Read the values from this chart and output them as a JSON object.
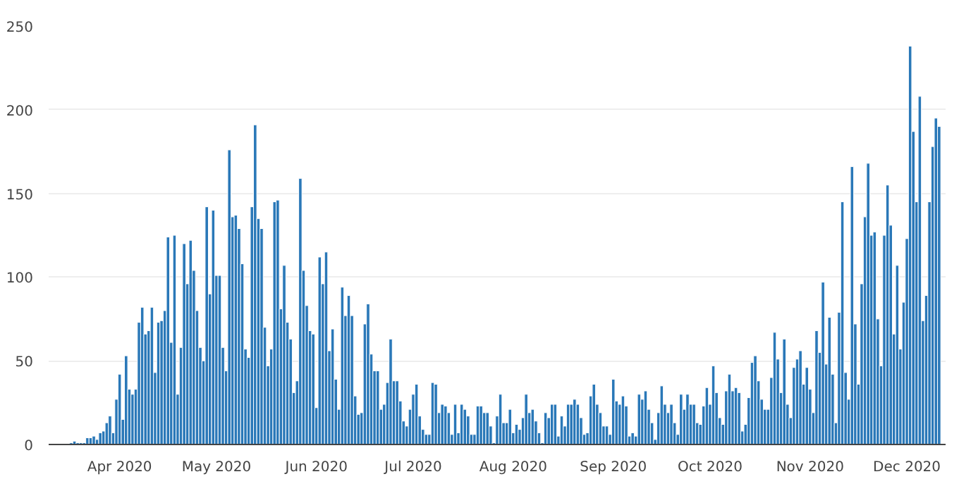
{
  "chart_data": {
    "type": "bar",
    "color": "#2a78b8",
    "grid": "y",
    "xlim": [
      "2020-03-10",
      "2020-12-13"
    ],
    "xticks": [
      {
        "value": "2020-04-01",
        "label": "Apr 2020"
      },
      {
        "value": "2020-05-01",
        "label": "May 2020"
      },
      {
        "value": "2020-06-01",
        "label": "Jun 2020"
      },
      {
        "value": "2020-07-01",
        "label": "Jul 2020"
      },
      {
        "value": "2020-08-01",
        "label": "Aug 2020"
      },
      {
        "value": "2020-09-01",
        "label": "Sep 2020"
      },
      {
        "value": "2020-10-01",
        "label": "Oct 2020"
      },
      {
        "value": "2020-11-01",
        "label": "Nov 2020"
      },
      {
        "value": "2020-12-01",
        "label": "Dec 2020"
      }
    ],
    "ylim": [
      0,
      250
    ],
    "yticks": [
      0,
      50,
      100,
      150,
      200,
      250
    ],
    "x": [
      "2020-03-17",
      "2020-03-18",
      "2020-03-19",
      "2020-03-20",
      "2020-03-21",
      "2020-03-22",
      "2020-03-23",
      "2020-03-24",
      "2020-03-25",
      "2020-03-26",
      "2020-03-27",
      "2020-03-28",
      "2020-03-29",
      "2020-03-30",
      "2020-03-31",
      "2020-04-01",
      "2020-04-02",
      "2020-04-03",
      "2020-04-04",
      "2020-04-05",
      "2020-04-06",
      "2020-04-07",
      "2020-04-08",
      "2020-04-09",
      "2020-04-10",
      "2020-04-11",
      "2020-04-12",
      "2020-04-13",
      "2020-04-14",
      "2020-04-15",
      "2020-04-16",
      "2020-04-17",
      "2020-04-18",
      "2020-04-19",
      "2020-04-20",
      "2020-04-21",
      "2020-04-22",
      "2020-04-23",
      "2020-04-24",
      "2020-04-25",
      "2020-04-26",
      "2020-04-27",
      "2020-04-28",
      "2020-04-29",
      "2020-04-30",
      "2020-05-01",
      "2020-05-02",
      "2020-05-03",
      "2020-05-04",
      "2020-05-05",
      "2020-05-06",
      "2020-05-07",
      "2020-05-08",
      "2020-05-09",
      "2020-05-10",
      "2020-05-11",
      "2020-05-12",
      "2020-05-13",
      "2020-05-14",
      "2020-05-15",
      "2020-05-16",
      "2020-05-17",
      "2020-05-18",
      "2020-05-19",
      "2020-05-20",
      "2020-05-21",
      "2020-05-22",
      "2020-05-23",
      "2020-05-24",
      "2020-05-25",
      "2020-05-26",
      "2020-05-27",
      "2020-05-28",
      "2020-05-29",
      "2020-05-30",
      "2020-05-31",
      "2020-06-01",
      "2020-06-02",
      "2020-06-03",
      "2020-06-04",
      "2020-06-05",
      "2020-06-06",
      "2020-06-07",
      "2020-06-08",
      "2020-06-09",
      "2020-06-10",
      "2020-06-11",
      "2020-06-12",
      "2020-06-13",
      "2020-06-14",
      "2020-06-15",
      "2020-06-16",
      "2020-06-17",
      "2020-06-18",
      "2020-06-19",
      "2020-06-20",
      "2020-06-21",
      "2020-06-22",
      "2020-06-23",
      "2020-06-24",
      "2020-06-25",
      "2020-06-26",
      "2020-06-27",
      "2020-06-28",
      "2020-06-29",
      "2020-06-30",
      "2020-07-01",
      "2020-07-02",
      "2020-07-03",
      "2020-07-04",
      "2020-07-05",
      "2020-07-06",
      "2020-07-07",
      "2020-07-08",
      "2020-07-09",
      "2020-07-10",
      "2020-07-11",
      "2020-07-12",
      "2020-07-13",
      "2020-07-14",
      "2020-07-15",
      "2020-07-16",
      "2020-07-17",
      "2020-07-18",
      "2020-07-19",
      "2020-07-20",
      "2020-07-21",
      "2020-07-22",
      "2020-07-23",
      "2020-07-24",
      "2020-07-25",
      "2020-07-26",
      "2020-07-27",
      "2020-07-28",
      "2020-07-29",
      "2020-07-30",
      "2020-07-31",
      "2020-08-01",
      "2020-08-02",
      "2020-08-03",
      "2020-08-04",
      "2020-08-05",
      "2020-08-06",
      "2020-08-07",
      "2020-08-08",
      "2020-08-09",
      "2020-08-10",
      "2020-08-11",
      "2020-08-12",
      "2020-08-13",
      "2020-08-14",
      "2020-08-15",
      "2020-08-16",
      "2020-08-17",
      "2020-08-18",
      "2020-08-19",
      "2020-08-20",
      "2020-08-21",
      "2020-08-22",
      "2020-08-23",
      "2020-08-24",
      "2020-08-25",
      "2020-08-26",
      "2020-08-27",
      "2020-08-28",
      "2020-08-29",
      "2020-08-30",
      "2020-08-31",
      "2020-09-01",
      "2020-09-02",
      "2020-09-03",
      "2020-09-04",
      "2020-09-05",
      "2020-09-06",
      "2020-09-07",
      "2020-09-08",
      "2020-09-09",
      "2020-09-10",
      "2020-09-11",
      "2020-09-12",
      "2020-09-13",
      "2020-09-14",
      "2020-09-15",
      "2020-09-16",
      "2020-09-17",
      "2020-09-18",
      "2020-09-19",
      "2020-09-20",
      "2020-09-21",
      "2020-09-22",
      "2020-09-23",
      "2020-09-24",
      "2020-09-25",
      "2020-09-26",
      "2020-09-27",
      "2020-09-28",
      "2020-09-29",
      "2020-09-30",
      "2020-10-01",
      "2020-10-02",
      "2020-10-03",
      "2020-10-04",
      "2020-10-05",
      "2020-10-06",
      "2020-10-07",
      "2020-10-08",
      "2020-10-09",
      "2020-10-10",
      "2020-10-11",
      "2020-10-12",
      "2020-10-13",
      "2020-10-14",
      "2020-10-15",
      "2020-10-16",
      "2020-10-17",
      "2020-10-18",
      "2020-10-19",
      "2020-10-20",
      "2020-10-21",
      "2020-10-22",
      "2020-10-23",
      "2020-10-24",
      "2020-10-25",
      "2020-10-26",
      "2020-10-27",
      "2020-10-28",
      "2020-10-29",
      "2020-10-30",
      "2020-10-31",
      "2020-11-01",
      "2020-11-02",
      "2020-11-03",
      "2020-11-04",
      "2020-11-05",
      "2020-11-06",
      "2020-11-07",
      "2020-11-08",
      "2020-11-09",
      "2020-11-10",
      "2020-11-11",
      "2020-11-12",
      "2020-11-13",
      "2020-11-14",
      "2020-11-15",
      "2020-11-16",
      "2020-11-17",
      "2020-11-18",
      "2020-11-19",
      "2020-11-20",
      "2020-11-21",
      "2020-11-22",
      "2020-11-23",
      "2020-11-24",
      "2020-11-25",
      "2020-11-26",
      "2020-11-27",
      "2020-11-28",
      "2020-11-29",
      "2020-11-30",
      "2020-12-01",
      "2020-12-02",
      "2020-12-03",
      "2020-12-04",
      "2020-12-05",
      "2020-12-06",
      "2020-12-07",
      "2020-12-08",
      "2020-12-09",
      "2020-12-10",
      "2020-12-11"
    ],
    "values": [
      1,
      2,
      1,
      1,
      1,
      4,
      4,
      5,
      3,
      7,
      8,
      13,
      17,
      7,
      27,
      42,
      15,
      53,
      33,
      30,
      33,
      73,
      82,
      66,
      68,
      82,
      43,
      73,
      74,
      80,
      124,
      61,
      125,
      30,
      58,
      120,
      96,
      122,
      104,
      80,
      58,
      50,
      142,
      90,
      140,
      101,
      101,
      58,
      44,
      176,
      136,
      137,
      129,
      108,
      57,
      52,
      142,
      191,
      135,
      129,
      70,
      47,
      57,
      145,
      146,
      81,
      107,
      73,
      63,
      31,
      38,
      159,
      104,
      83,
      68,
      66,
      22,
      112,
      96,
      115,
      56,
      69,
      39,
      21,
      94,
      77,
      89,
      77,
      29,
      18,
      19,
      72,
      84,
      54,
      44,
      44,
      21,
      24,
      37,
      63,
      38,
      38,
      26,
      14,
      11,
      21,
      30,
      36,
      17,
      9,
      6,
      6,
      37,
      36,
      19,
      24,
      23,
      19,
      6,
      24,
      7,
      24,
      21,
      17,
      6,
      6,
      23,
      23,
      19,
      19,
      11,
      1,
      17,
      30,
      13,
      13,
      21,
      7,
      12,
      9,
      16,
      30,
      19,
      21,
      14,
      7,
      1,
      19,
      16,
      24,
      24,
      5,
      17,
      11,
      24,
      24,
      27,
      24,
      16,
      6,
      7,
      29,
      36,
      24,
      19,
      11,
      11,
      6,
      39,
      26,
      24,
      29,
      23,
      5,
      7,
      5,
      30,
      27,
      32,
      21,
      13,
      3,
      19,
      35,
      24,
      19,
      24,
      13,
      6,
      30,
      21,
      30,
      24,
      24,
      13,
      12,
      23,
      34,
      24,
      47,
      31,
      16,
      12,
      32,
      42,
      32,
      34,
      31,
      8,
      12,
      28,
      49,
      53,
      38,
      27,
      21,
      21,
      40,
      67,
      51,
      31,
      63,
      24,
      16,
      46,
      51,
      56,
      36,
      46,
      33,
      19,
      68,
      55,
      97,
      48,
      76,
      42,
      13,
      79,
      145,
      43,
      27,
      166,
      72,
      36,
      96,
      136,
      168,
      125,
      127,
      75,
      47,
      125,
      155,
      131,
      66,
      107,
      57,
      85,
      123,
      238,
      187,
      145,
      208,
      74,
      89,
      145,
      178,
      195,
      190
    ]
  }
}
